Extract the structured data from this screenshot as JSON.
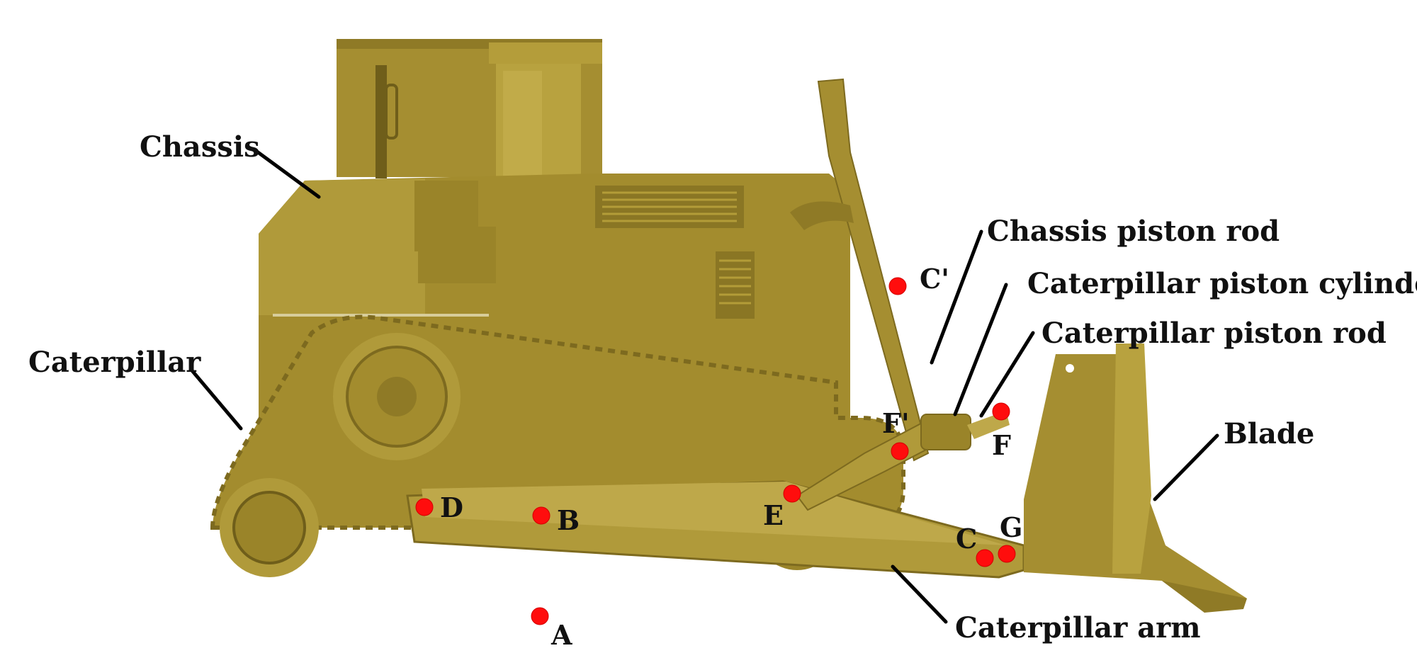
{
  "colors": {
    "body": "#a38c2e",
    "body_light": "#b39c38",
    "body_dark": "#7d6a1f",
    "marker": "#ff0d0d",
    "leader": "#000000"
  },
  "part_labels": {
    "chassis": "Chassis",
    "caterpillar": "Caterpillar",
    "chassis_piston_rod": "Chassis piston rod",
    "caterpillar_piston_cylinder": "Caterpillar piston cylinder",
    "caterpillar_piston_rod": "Caterpillar piston rod",
    "blade": "Blade",
    "caterpillar_arm": "Caterpillar arm"
  },
  "point_labels": {
    "A": "A",
    "B": "B",
    "C": "C",
    "C_prime": "C'",
    "D": "D",
    "E": "E",
    "F": "F",
    "F_prime": "F'",
    "G": "G"
  }
}
